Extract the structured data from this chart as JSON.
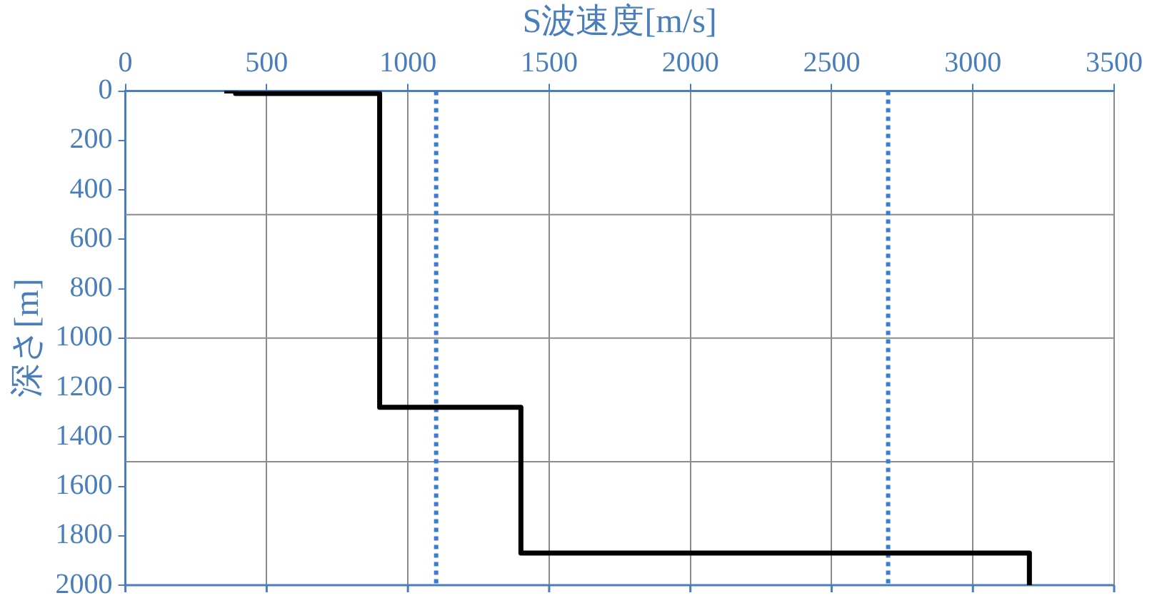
{
  "chart_data": {
    "type": "line",
    "xlabel": "S波速度[m/s]",
    "ylabel": "深さ[m]",
    "x": [
      350,
      390,
      390,
      900,
      900,
      1400,
      1400,
      3200,
      3200
    ],
    "series": [
      {
        "color": "#000000",
        "values": [
          0,
          0,
          10,
          10,
          1280,
          1280,
          1870,
          1870,
          2000
        ]
      }
    ],
    "xlim": [
      0,
      3500
    ],
    "xticks": [
      0,
      500,
      1000,
      1500,
      2000,
      2500,
      3000,
      3500
    ],
    "ylim": [
      2000,
      0
    ],
    "yticks": [
      0,
      200,
      400,
      600,
      800,
      1000,
      1200,
      1400,
      1600,
      1800,
      2000
    ],
    "grid": "x",
    "legend": false,
    "marker": "none",
    "line_style": "solid",
    "ref_lines": [
      {
        "axis": "y",
        "value": 500,
        "color": "#8c8c8c",
        "line_style": "solid"
      },
      {
        "axis": "y",
        "value": 1000,
        "color": "#8c8c8c",
        "line_style": "solid"
      },
      {
        "axis": "y",
        "value": 1500,
        "color": "#8c8c8c",
        "line_style": "solid"
      },
      {
        "axis": "x",
        "value": 1100,
        "color": "#3a7bd5",
        "line_style": "dotted"
      },
      {
        "axis": "x",
        "value": 2700,
        "color": "#3a7bd5",
        "line_style": "dotted"
      }
    ]
  }
}
